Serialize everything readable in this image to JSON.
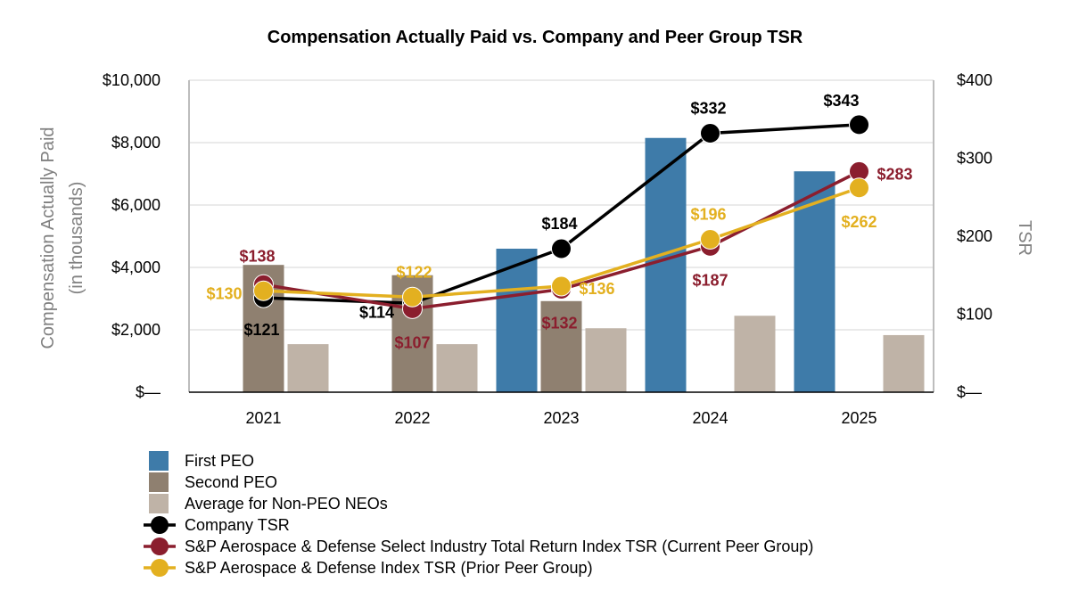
{
  "chart_data": {
    "type": "bar-line-combo",
    "title": "Compensation Actually Paid vs. Company and Peer Group TSR",
    "ylabel_left": [
      "Compensation Actually Paid",
      "(in thousands)"
    ],
    "ylabel_right": "TSR",
    "categories": [
      "2021",
      "2022",
      "2023",
      "2024",
      "2025"
    ],
    "left_axis": {
      "ylim": [
        0,
        10000
      ],
      "ticks": [
        0,
        2000,
        4000,
        6000,
        8000,
        10000
      ],
      "tick_labels": [
        "$—",
        "$2,000",
        "$4,000",
        "$6,000",
        "$8,000",
        "$10,000"
      ]
    },
    "right_axis": {
      "ylim": [
        0,
        400
      ],
      "ticks": [
        0,
        100,
        200,
        300,
        400
      ],
      "tick_labels": [
        "$—",
        "$100",
        "$200",
        "$300",
        "$400"
      ]
    },
    "bar_series": [
      {
        "name": "First PEO",
        "color": "#3e7ba9",
        "values": [
          null,
          null,
          4600,
          8150,
          7080
        ]
      },
      {
        "name": "Second PEO",
        "color": "#8f8070",
        "values": [
          4080,
          3750,
          2920,
          null,
          null
        ]
      },
      {
        "name": "Average for Non-PEO NEOs",
        "color": "#bfb3a7",
        "values": [
          1540,
          1540,
          2050,
          2450,
          1830
        ]
      }
    ],
    "line_series": [
      {
        "name": "Company TSR",
        "color": "#000000",
        "values": [
          121,
          114,
          184,
          332,
          343
        ],
        "labels": [
          "$121",
          "$114",
          "$184",
          "$332",
          "$343"
        ]
      },
      {
        "name": "S&P Aerospace & Defense Select Industry Total Return Index TSR (Current Peer Group)",
        "color": "#8b1e2e",
        "values": [
          138,
          107,
          132,
          187,
          283
        ],
        "labels": [
          "$138",
          "$107",
          "$132",
          "$187",
          "$283"
        ]
      },
      {
        "name": "S&P Aerospace & Defense Index TSR (Prior Peer Group)",
        "color": "#e3b020",
        "values": [
          130,
          122,
          136,
          196,
          262
        ],
        "labels": [
          "$130",
          "$122",
          "$136",
          "$196",
          "$262"
        ]
      }
    ],
    "legend": [
      {
        "kind": "bar",
        "name": "First PEO",
        "color": "#3e7ba9"
      },
      {
        "kind": "bar",
        "name": "Second PEO",
        "color": "#8f8070"
      },
      {
        "kind": "bar",
        "name": "Average for Non-PEO NEOs",
        "color": "#bfb3a7"
      },
      {
        "kind": "line",
        "name": "Company TSR",
        "color": "#000000"
      },
      {
        "kind": "line",
        "name": "S&P Aerospace & Defense Select Industry Total Return Index TSR (Current Peer Group)",
        "color": "#8b1e2e"
      },
      {
        "kind": "line",
        "name": "S&P Aerospace & Defense Index TSR (Prior Peer Group)",
        "color": "#e3b020"
      }
    ],
    "legend_position": "bottom-left",
    "grid": true
  }
}
